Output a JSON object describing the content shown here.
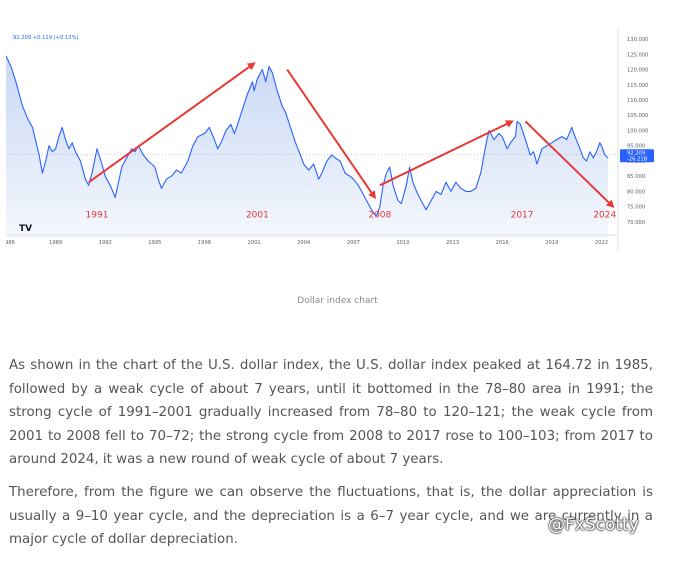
{
  "chart_data": {
    "type": "area",
    "header_readout": "92.209 +0.119 (+0.13%)",
    "last_price_label": "92.209",
    "last_change_label": "-26.21B",
    "x_ticks": [
      "986",
      "1989",
      "1992",
      "1995",
      "1998",
      "2001",
      "2004",
      "2007",
      "2010",
      "2013",
      "2016",
      "2019",
      "2022"
    ],
    "y_ticks": [
      "130.000",
      "125.000",
      "120.000",
      "115.000",
      "110.000",
      "105.000",
      "100.000",
      "95.000",
      "90.000",
      "85.000",
      "80.000",
      "75.000",
      "70.000"
    ],
    "ylim": [
      68,
      131
    ],
    "xlim": [
      1986,
      2023
    ],
    "grid": false,
    "reference_line": 92.2,
    "series": [
      {
        "values": [
          [
            1986.0,
            124.5
          ],
          [
            1986.3,
            121
          ],
          [
            1986.6,
            116
          ],
          [
            1987.0,
            108
          ],
          [
            1987.3,
            104
          ],
          [
            1987.6,
            101
          ],
          [
            1988.0,
            92
          ],
          [
            1988.2,
            86
          ],
          [
            1988.4,
            90
          ],
          [
            1988.6,
            95
          ],
          [
            1988.8,
            93
          ],
          [
            1989.0,
            94
          ],
          [
            1989.2,
            98
          ],
          [
            1989.4,
            101
          ],
          [
            1989.6,
            97
          ],
          [
            1989.8,
            94
          ],
          [
            1990.0,
            96
          ],
          [
            1990.2,
            93
          ],
          [
            1990.5,
            90
          ],
          [
            1990.8,
            84
          ],
          [
            1991.0,
            82
          ],
          [
            1991.2,
            86
          ],
          [
            1991.5,
            94
          ],
          [
            1991.8,
            89
          ],
          [
            1992.0,
            85
          ],
          [
            1992.3,
            82
          ],
          [
            1992.6,
            78
          ],
          [
            1992.8,
            83
          ],
          [
            1993.0,
            88
          ],
          [
            1993.3,
            91
          ],
          [
            1993.6,
            94
          ],
          [
            1993.8,
            93
          ],
          [
            1994.0,
            95
          ],
          [
            1994.3,
            92
          ],
          [
            1994.6,
            90
          ],
          [
            1995.0,
            88
          ],
          [
            1995.2,
            84
          ],
          [
            1995.4,
            81
          ],
          [
            1995.7,
            84
          ],
          [
            1996.0,
            85
          ],
          [
            1996.3,
            87
          ],
          [
            1996.6,
            86
          ],
          [
            1997.0,
            90
          ],
          [
            1997.3,
            95
          ],
          [
            1997.6,
            98
          ],
          [
            1998.0,
            99
          ],
          [
            1998.3,
            101
          ],
          [
            1998.6,
            97
          ],
          [
            1998.8,
            94
          ],
          [
            1999.0,
            96
          ],
          [
            1999.3,
            100
          ],
          [
            1999.6,
            102
          ],
          [
            1999.8,
            99
          ],
          [
            2000.0,
            102
          ],
          [
            2000.3,
            107
          ],
          [
            2000.6,
            112
          ],
          [
            2000.9,
            116
          ],
          [
            2001.0,
            113
          ],
          [
            2001.2,
            117
          ],
          [
            2001.5,
            120
          ],
          [
            2001.7,
            116
          ],
          [
            2001.9,
            121
          ],
          [
            2002.1,
            119
          ],
          [
            2002.4,
            113
          ],
          [
            2002.7,
            108
          ],
          [
            2002.9,
            106
          ],
          [
            2003.2,
            101
          ],
          [
            2003.5,
            96
          ],
          [
            2003.8,
            92
          ],
          [
            2004.0,
            89
          ],
          [
            2004.3,
            87
          ],
          [
            2004.6,
            89
          ],
          [
            2004.9,
            84
          ],
          [
            2005.1,
            86
          ],
          [
            2005.4,
            90
          ],
          [
            2005.7,
            92
          ],
          [
            2005.9,
            91
          ],
          [
            2006.2,
            90
          ],
          [
            2006.5,
            86
          ],
          [
            2006.8,
            85
          ],
          [
            2007.0,
            84
          ],
          [
            2007.3,
            82
          ],
          [
            2007.6,
            79
          ],
          [
            2007.9,
            76
          ],
          [
            2008.2,
            73
          ],
          [
            2008.4,
            72
          ],
          [
            2008.6,
            75
          ],
          [
            2008.8,
            82
          ],
          [
            2009.0,
            86
          ],
          [
            2009.2,
            88
          ],
          [
            2009.4,
            82
          ],
          [
            2009.7,
            77
          ],
          [
            2009.9,
            76
          ],
          [
            2010.2,
            82
          ],
          [
            2010.4,
            88
          ],
          [
            2010.6,
            83
          ],
          [
            2010.9,
            79
          ],
          [
            2011.2,
            76
          ],
          [
            2011.4,
            74
          ],
          [
            2011.7,
            77
          ],
          [
            2012.0,
            80
          ],
          [
            2012.3,
            79
          ],
          [
            2012.6,
            83
          ],
          [
            2012.9,
            80
          ],
          [
            2013.2,
            83
          ],
          [
            2013.5,
            81
          ],
          [
            2013.8,
            80
          ],
          [
            2014.1,
            80
          ],
          [
            2014.4,
            81
          ],
          [
            2014.7,
            86
          ],
          [
            2015.0,
            95
          ],
          [
            2015.2,
            100
          ],
          [
            2015.5,
            97
          ],
          [
            2015.8,
            99
          ],
          [
            2016.0,
            98
          ],
          [
            2016.3,
            94
          ],
          [
            2016.5,
            96
          ],
          [
            2016.8,
            98
          ],
          [
            2016.9,
            103
          ],
          [
            2017.1,
            102
          ],
          [
            2017.4,
            97
          ],
          [
            2017.7,
            92
          ],
          [
            2017.9,
            93
          ],
          [
            2018.1,
            89
          ],
          [
            2018.4,
            94
          ],
          [
            2018.7,
            95
          ],
          [
            2019.0,
            96
          ],
          [
            2019.3,
            97
          ],
          [
            2019.6,
            98
          ],
          [
            2019.9,
            97
          ],
          [
            2020.2,
            101
          ],
          [
            2020.4,
            98
          ],
          [
            2020.7,
            94
          ],
          [
            2020.9,
            91
          ],
          [
            2021.1,
            90
          ],
          [
            2021.3,
            93
          ],
          [
            2021.5,
            91
          ],
          [
            2021.7,
            93
          ],
          [
            2021.9,
            96
          ],
          [
            2022.0,
            95
          ],
          [
            2022.2,
            92
          ],
          [
            2022.4,
            91
          ]
        ]
      }
    ],
    "annotations": [
      {
        "text": "1991",
        "x": 1991.5,
        "y": 71.5
      },
      {
        "text": "2001",
        "x": 2001.2,
        "y": 71.5
      },
      {
        "text": "2008",
        "x": 2008.6,
        "y": 71.5
      },
      {
        "text": "2017",
        "x": 2017.2,
        "y": 71.5
      },
      {
        "text": "2024",
        "x": 2022.2,
        "y": 71.5
      }
    ],
    "arrows": [
      {
        "from": [
          1991.0,
          83
        ],
        "to": [
          2001.0,
          122
        ]
      },
      {
        "from": [
          2003.0,
          120
        ],
        "to": [
          2008.3,
          78
        ]
      },
      {
        "from": [
          2008.6,
          82
        ],
        "to": [
          2016.6,
          103
        ]
      },
      {
        "from": [
          2017.4,
          103
        ],
        "to": [
          2022.7,
          75
        ]
      }
    ],
    "colors": {
      "line": "#2962ff",
      "area_top": "#c9d8f5",
      "area_bottom": "#f4f7fd",
      "arrow": "#e53935",
      "annotation": "#e53935",
      "price_badge": "#2962ff"
    }
  },
  "caption": "Dollar index chart",
  "paragraphs": [
    "As shown in the chart of the U.S. dollar index, the U.S. dollar index peaked at 164.72 in 1985, followed by a weak cycle of about 7 years, until it bottomed in the 78–80 area in 1991; the strong cycle of 1991–2001 gradually increased from 78–80 to 120–121; the weak cycle from 2001 to 2008 fell to 70–72; the strong cycle from 2008 to 2017 rose to 100–103; from 2017 to around 2024, it was a new round of weak cycle of about 7 years.",
    "Therefore, from the figure we can observe the fluctuations, that is, the dollar appreciation is usually a 9–10 year cycle, and the depreciation is a 6–7 year cycle, and we are currently in a major cycle of dollar depreciation."
  ],
  "logo_text": "TV",
  "watermark": "@FxScotty"
}
